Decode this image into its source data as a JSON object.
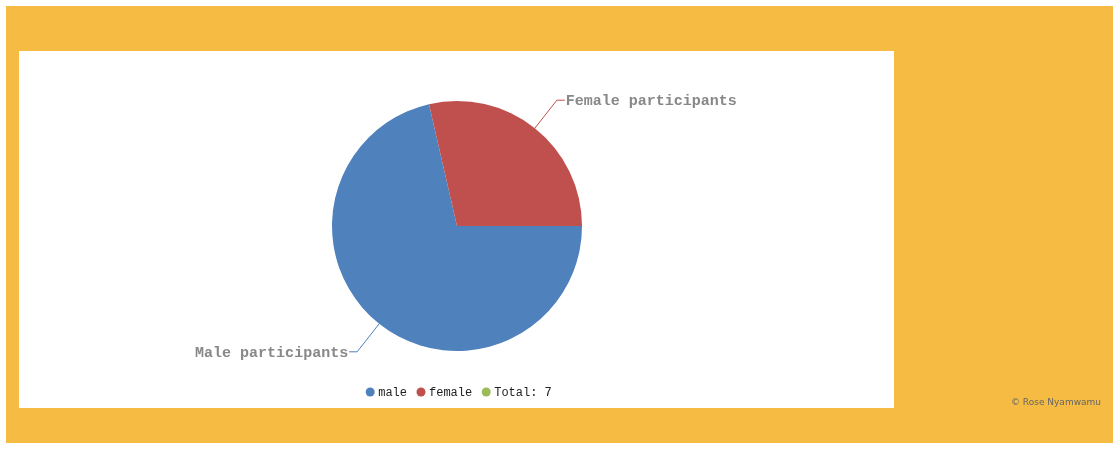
{
  "chart_data": {
    "type": "pie",
    "categories": [
      "male",
      "female",
      "Total: 7"
    ],
    "values": [
      71.4,
      28.6,
      0
    ],
    "colors": [
      "#4f81bd",
      "#c0504d",
      "#9bbb59"
    ],
    "legend": "bottom",
    "annotations": [
      {
        "text": "Male participants",
        "x": "male"
      },
      {
        "text": "Female participants",
        "x": "female"
      },
      "© Rose Nyamwamu"
    ]
  }
}
